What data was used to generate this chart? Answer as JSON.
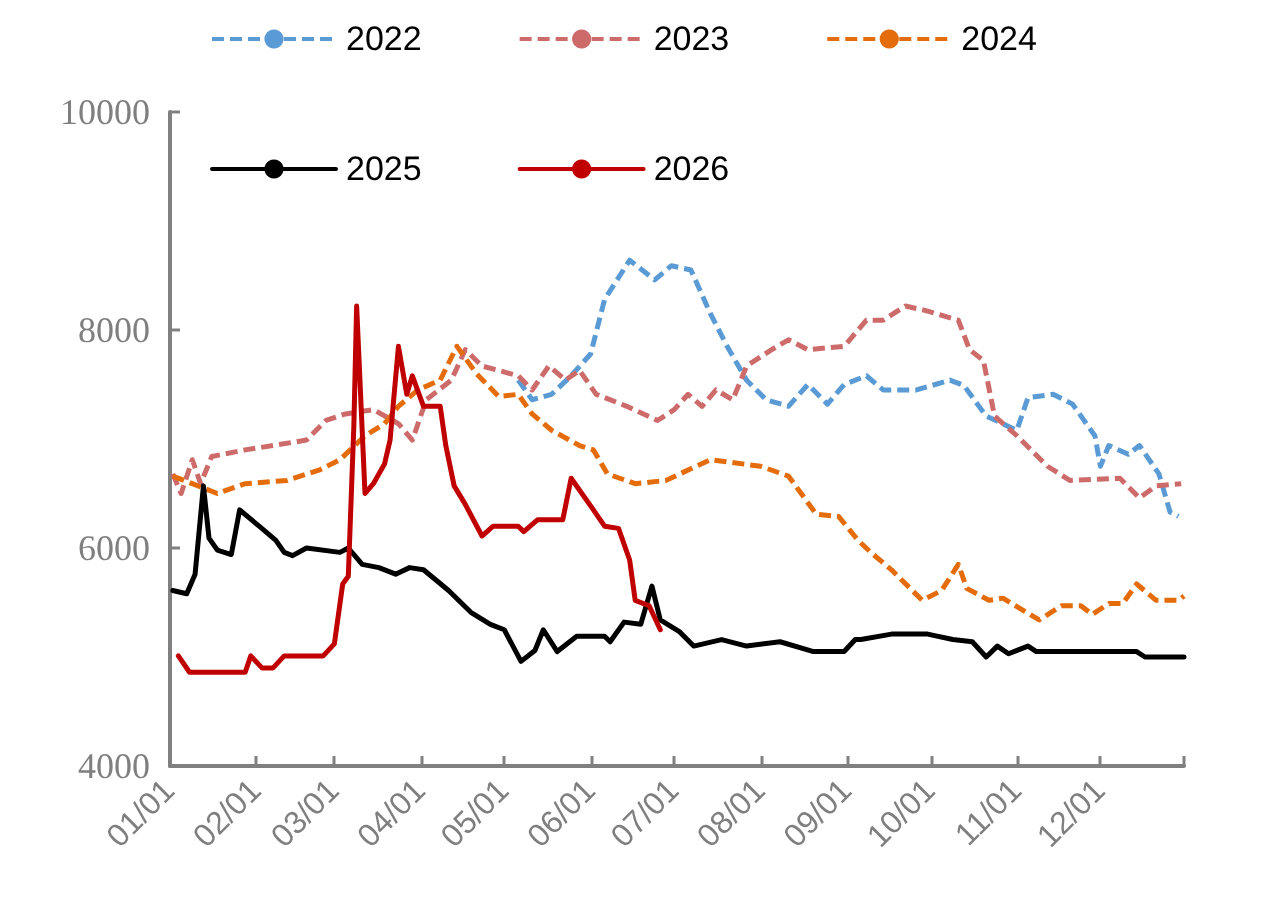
{
  "chart_data": {
    "type": "line",
    "line_style": "solid",
    "marker": "none",
    "grid": false,
    "legend": "top",
    "xlim": [
      "--01-01",
      "--12-31"
    ],
    "xticks": [
      {
        "value": "--01-01",
        "label": "01/01"
      },
      {
        "value": "--02-01",
        "label": "02/01"
      },
      {
        "value": "--03-01",
        "label": "03/01"
      },
      {
        "value": "--04-01",
        "label": "04/01"
      },
      {
        "value": "--05-01",
        "label": "05/01"
      },
      {
        "value": "--06-01",
        "label": "06/01"
      },
      {
        "value": "--07-01",
        "label": "07/01"
      },
      {
        "value": "--08-01",
        "label": "08/01"
      },
      {
        "value": "--09-01",
        "label": "09/01"
      },
      {
        "value": "--10-01",
        "label": "10/01"
      },
      {
        "value": "--11-01",
        "label": "11/01"
      },
      {
        "value": "--12-01",
        "label": "12/01"
      }
    ],
    "ylim": [
      4000,
      10000
    ],
    "yticks": [
      4000,
      6000,
      8000,
      10000
    ],
    "series": [
      {
        "name": "2022",
        "color": "#5b9bd5",
        "line_style": "dashed",
        "x": [
          "--05-06",
          "--05-11",
          "--05-18",
          "--05-25",
          "--06-01",
          "--06-06",
          "--06-15",
          "--06-24",
          "--06-30",
          "--07-07",
          "--07-14",
          "--07-20",
          "--07-27",
          "--08-03",
          "--08-11",
          "--08-18",
          "--08-25",
          "--08-31",
          "--09-08",
          "--09-14",
          "--09-26",
          "--10-08",
          "--10-13",
          "--10-21",
          "--11-01",
          "--11-05",
          "--11-14",
          "--11-21",
          "--11-29",
          "--12-01",
          "--12-04",
          "--12-11",
          "--12-15",
          "--12-22",
          "--12-26",
          "--12-29"
        ],
        "values": [
          7540,
          7360,
          7410,
          7580,
          7780,
          8280,
          8640,
          8460,
          8590,
          8550,
          8150,
          7850,
          7540,
          7360,
          7300,
          7500,
          7320,
          7500,
          7580,
          7450,
          7450,
          7540,
          7490,
          7210,
          7080,
          7380,
          7410,
          7320,
          7030,
          6750,
          6940,
          6860,
          6940,
          6680,
          6330,
          6290
        ]
      },
      {
        "name": "2023",
        "color": "#cd6b6b",
        "line_style": "dashed",
        "x": [
          "--01-02",
          "--01-05",
          "--01-09",
          "--01-12",
          "--01-16",
          "--01-28",
          "--02-07",
          "--02-19",
          "--02-26",
          "--03-05",
          "--03-15",
          "--03-24",
          "--03-29",
          "--04-03",
          "--04-12",
          "--04-17",
          "--04-23",
          "--05-06",
          "--05-11",
          "--05-17",
          "--05-23",
          "--05-28",
          "--06-03",
          "--06-14",
          "--06-25",
          "--07-01",
          "--07-06",
          "--07-11",
          "--07-16",
          "--07-22",
          "--07-27",
          "--08-05",
          "--08-11",
          "--08-18",
          "--08-31",
          "--09-08",
          "--09-14",
          "--09-22",
          "--09-29",
          "--10-11",
          "--10-15",
          "--10-20",
          "--10-24",
          "--11-01",
          "--11-12",
          "--11-20",
          "--12-08",
          "--12-15",
          "--12-21",
          "--12-30"
        ],
        "values": [
          6680,
          6500,
          6810,
          6590,
          6840,
          6900,
          6940,
          6990,
          7170,
          7230,
          7270,
          7140,
          6990,
          7360,
          7540,
          7820,
          7670,
          7580,
          7450,
          7670,
          7540,
          7630,
          7410,
          7300,
          7170,
          7270,
          7410,
          7300,
          7450,
          7360,
          7670,
          7820,
          7910,
          7820,
          7850,
          8090,
          8090,
          8220,
          8180,
          8090,
          7820,
          7720,
          7210,
          7030,
          6750,
          6620,
          6640,
          6460,
          6570,
          6590
        ]
      },
      {
        "name": "2024",
        "color": "#e46c0a",
        "line_style": "dashed",
        "x": [
          "--01-02",
          "--01-09",
          "--01-18",
          "--01-28",
          "--02-12",
          "--02-24",
          "--03-03",
          "--03-12",
          "--03-19",
          "--03-24",
          "--03-31",
          "--04-08",
          "--04-14",
          "--04-21",
          "--04-29",
          "--05-06",
          "--05-11",
          "--05-18",
          "--05-28",
          "--06-02",
          "--06-07",
          "--06-17",
          "--06-28",
          "--07-14",
          "--08-01",
          "--08-11",
          "--08-21",
          "--08-29",
          "--09-05",
          "--09-10",
          "--09-17",
          "--09-28",
          "--10-05",
          "--10-11",
          "--10-14",
          "--10-22",
          "--10-27",
          "--11-09",
          "--11-17",
          "--11-24",
          "--11-28",
          "--12-04",
          "--12-09",
          "--12-14",
          "--12-21",
          "--12-29",
          "--12-31"
        ],
        "values": [
          6660,
          6590,
          6500,
          6590,
          6620,
          6720,
          6810,
          7030,
          7140,
          7300,
          7450,
          7540,
          7850,
          7600,
          7390,
          7410,
          7230,
          7080,
          6940,
          6900,
          6680,
          6590,
          6620,
          6810,
          6750,
          6660,
          6310,
          6290,
          6070,
          5950,
          5800,
          5520,
          5610,
          5850,
          5630,
          5520,
          5540,
          5340,
          5470,
          5470,
          5390,
          5490,
          5490,
          5670,
          5520,
          5520,
          5560
        ]
      },
      {
        "name": "2025",
        "color": "#000000",
        "x": [
          "--01-02",
          "--01-07",
          "--01-10",
          "--01-13",
          "--01-15",
          "--01-18",
          "--01-23",
          "--01-26",
          "--02-02",
          "--02-08",
          "--02-11",
          "--02-14",
          "--02-19",
          "--03-03",
          "--03-06",
          "--03-11",
          "--03-17",
          "--03-23",
          "--03-28",
          "--04-02",
          "--04-11",
          "--04-19",
          "--04-26",
          "--05-01",
          "--05-07",
          "--05-12",
          "--05-15",
          "--05-20",
          "--05-27",
          "--06-06",
          "--06-08",
          "--06-13",
          "--06-19",
          "--06-23",
          "--06-26",
          "--07-03",
          "--07-08",
          "--07-18",
          "--07-27",
          "--08-08",
          "--08-20",
          "--08-31",
          "--09-04",
          "--09-06",
          "--09-17",
          "--09-30",
          "--10-09",
          "--10-16",
          "--10-21",
          "--10-25",
          "--10-29",
          "--11-05",
          "--11-08",
          "--12-14",
          "--12-17",
          "--12-31"
        ],
        "values": [
          5610,
          5580,
          5760,
          6570,
          6090,
          5980,
          5940,
          6350,
          6200,
          6070,
          5960,
          5930,
          6000,
          5960,
          6000,
          5850,
          5820,
          5760,
          5820,
          5800,
          5610,
          5410,
          5300,
          5250,
          4960,
          5060,
          5250,
          5050,
          5190,
          5190,
          5140,
          5320,
          5300,
          5650,
          5340,
          5230,
          5100,
          5160,
          5100,
          5140,
          5050,
          5050,
          5160,
          5160,
          5210,
          5210,
          5160,
          5140,
          5000,
          5100,
          5030,
          5100,
          5050,
          5050,
          5000,
          5000
        ]
      },
      {
        "name": "2026",
        "color": "#c00000",
        "x": [
          "--01-04",
          "--01-08",
          "--01-28",
          "--01-30",
          "--02-03",
          "--02-07",
          "--02-11",
          "--02-25",
          "--03-01",
          "--03-04",
          "--03-06",
          "--03-08",
          "--03-09",
          "--03-12",
          "--03-15",
          "--03-19",
          "--03-21",
          "--03-24",
          "--03-27",
          "--03-29",
          "--04-02",
          "--04-08",
          "--04-10",
          "--04-13",
          "--04-17",
          "--04-23",
          "--04-27",
          "--05-06",
          "--05-08",
          "--05-13",
          "--05-22",
          "--05-25",
          "--06-02",
          "--06-06",
          "--06-11",
          "--06-15",
          "--06-17",
          "--06-22",
          "--06-26"
        ],
        "values": [
          5010,
          4860,
          4860,
          5010,
          4900,
          4900,
          5010,
          5010,
          5120,
          5670,
          5740,
          7120,
          8220,
          6500,
          6590,
          6770,
          6990,
          7850,
          7410,
          7580,
          7300,
          7300,
          6940,
          6570,
          6400,
          6110,
          6200,
          6200,
          6150,
          6260,
          6260,
          6640,
          6350,
          6200,
          6180,
          5890,
          5520,
          5470,
          5250
        ]
      }
    ]
  }
}
